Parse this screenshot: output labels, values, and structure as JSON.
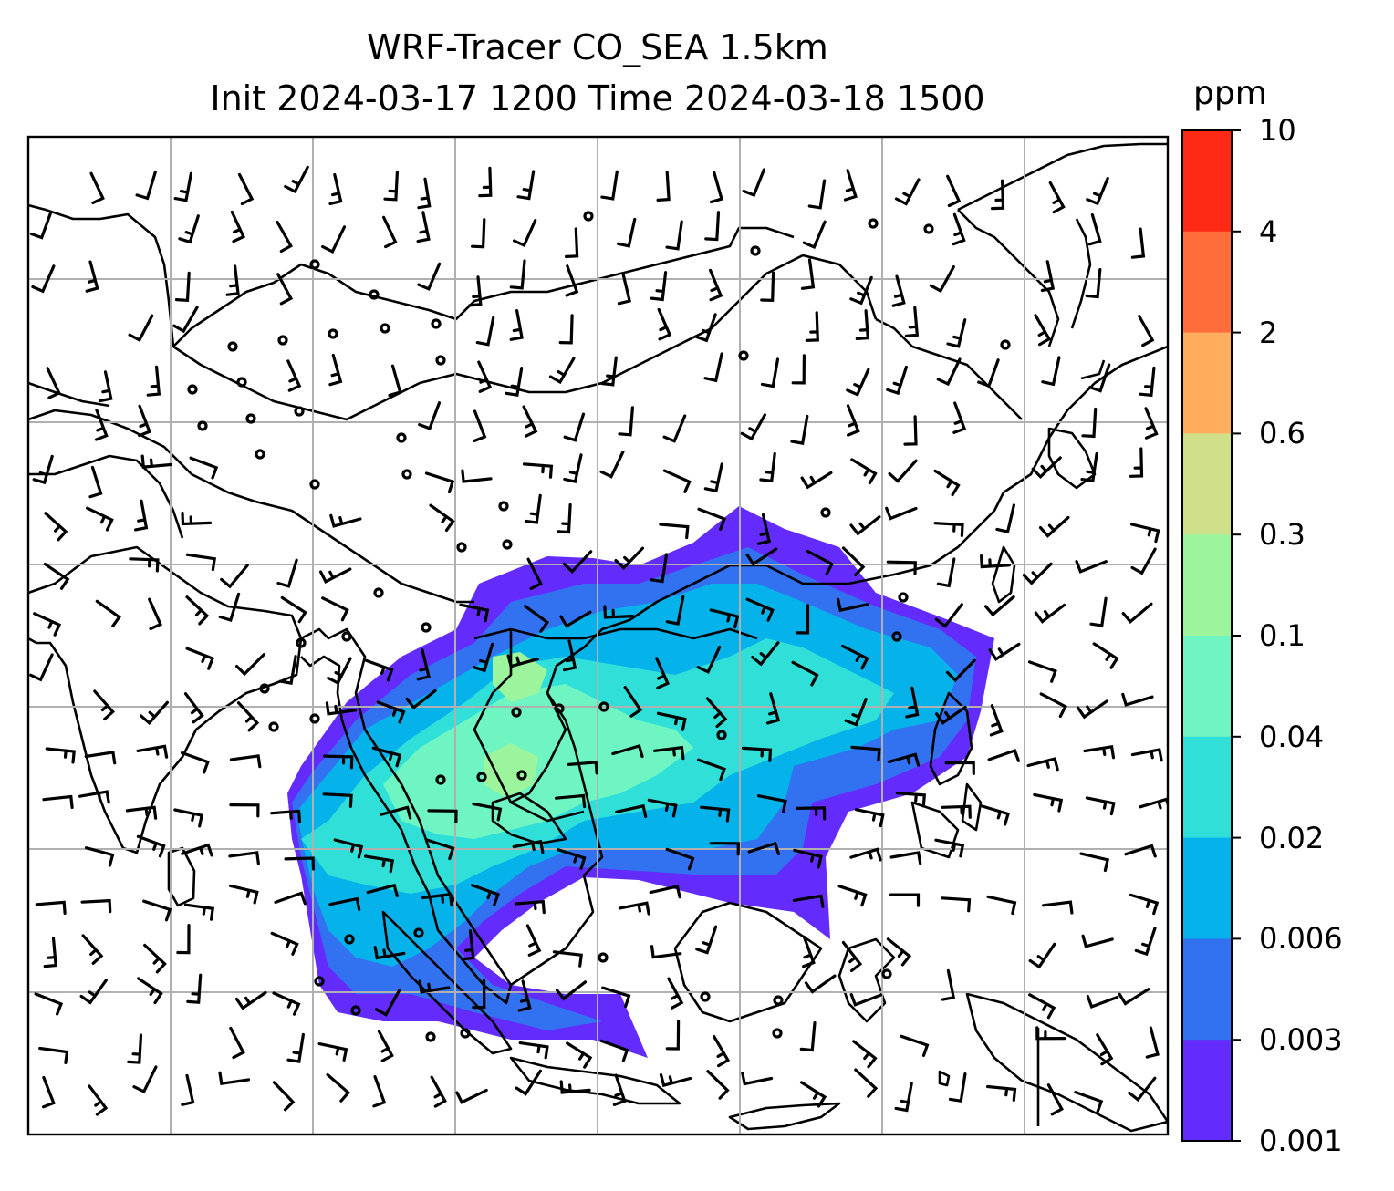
{
  "title": {
    "line1": "WRF-Tracer CO_SEA 1.5km",
    "line2": "Init 2024-03-17 1200 Time 2024-03-18 1500"
  },
  "colorbar": {
    "unit": "ppm",
    "levels": [
      "10",
      "4",
      "2",
      "0.6",
      "0.3",
      "0.1",
      "0.04",
      "0.02",
      "0.006",
      "0.003",
      "0.001"
    ],
    "colors": [
      "#ff2a16",
      "#ff6e3a",
      "#ffae5e",
      "#d0e08a",
      "#9cf59c",
      "#6ef5c2",
      "#30e0d8",
      "#05b2ea",
      "#3272f0",
      "#632cfc"
    ]
  },
  "map": {
    "region": "Southeast Asia",
    "field": "CO tracer concentration",
    "gridlines": true,
    "barbs": "wind barbs at 1.5km"
  }
}
